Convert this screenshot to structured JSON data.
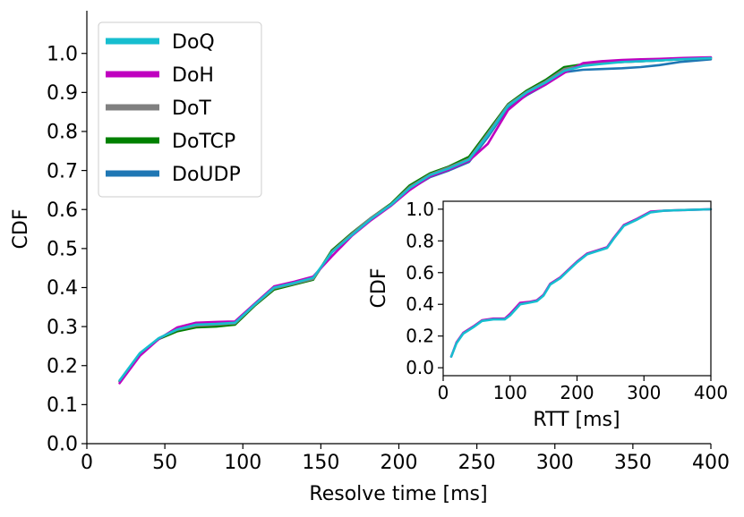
{
  "chart_data": [
    {
      "type": "line",
      "title": "",
      "xlabel": "Resolve time [ms]",
      "ylabel": "CDF",
      "xlim": [
        0,
        400
      ],
      "ylim": [
        0,
        1.05
      ],
      "xticks": [
        0,
        50,
        100,
        150,
        200,
        250,
        300,
        350,
        400
      ],
      "xtick_labels": [
        "0",
        "50",
        "100",
        "150",
        "200",
        "250",
        "300",
        "350",
        "400"
      ],
      "yticks": [
        0.0,
        0.1,
        0.2,
        0.3,
        0.4,
        0.5,
        0.6,
        0.7,
        0.8,
        0.9,
        1.0
      ],
      "ytick_labels": [
        "0.0",
        "0.1",
        "0.2",
        "0.3",
        "0.4",
        "0.5",
        "0.6",
        "0.7",
        "0.8",
        "0.9",
        "1.0"
      ],
      "grid": false,
      "legend_position": "top-left",
      "series": [
        {
          "name": "DoQ",
          "color": "#17becf",
          "x": [
            21,
            34,
            46,
            58,
            70,
            83,
            95,
            108,
            120,
            133,
            145,
            157,
            170,
            182,
            195,
            207,
            220,
            232,
            245,
            257,
            270,
            282,
            294,
            306,
            318,
            330,
            343,
            355,
            367,
            380,
            400
          ],
          "y": [
            0.162,
            0.232,
            0.27,
            0.293,
            0.305,
            0.307,
            0.31,
            0.358,
            0.4,
            0.412,
            0.425,
            0.49,
            0.535,
            0.575,
            0.612,
            0.655,
            0.688,
            0.705,
            0.728,
            0.79,
            0.865,
            0.9,
            0.925,
            0.955,
            0.968,
            0.973,
            0.978,
            0.98,
            0.982,
            0.985,
            0.988
          ]
        },
        {
          "name": "DoH",
          "color": "#bf00bf",
          "x": [
            21,
            34,
            46,
            58,
            70,
            83,
            95,
            108,
            120,
            133,
            145,
            157,
            170,
            182,
            195,
            207,
            220,
            232,
            245,
            257,
            270,
            282,
            294,
            306,
            318,
            330,
            343,
            355,
            367,
            380,
            400
          ],
          "y": [
            0.155,
            0.225,
            0.268,
            0.298,
            0.31,
            0.312,
            0.313,
            0.36,
            0.403,
            0.415,
            0.428,
            0.48,
            0.533,
            0.572,
            0.61,
            0.65,
            0.685,
            0.702,
            0.725,
            0.768,
            0.855,
            0.895,
            0.92,
            0.95,
            0.975,
            0.98,
            0.983,
            0.985,
            0.986,
            0.988,
            0.99
          ]
        },
        {
          "name": "DoT",
          "color": "#808080",
          "x": [
            21,
            34,
            46,
            58,
            70,
            83,
            95,
            108,
            120,
            133,
            145,
            157,
            170,
            182,
            195,
            207,
            220,
            232,
            245,
            257,
            270,
            282,
            294,
            306,
            318,
            330,
            343,
            355,
            367,
            380,
            400
          ],
          "y": [
            0.16,
            0.23,
            0.27,
            0.292,
            0.302,
            0.305,
            0.308,
            0.357,
            0.398,
            0.41,
            0.422,
            0.492,
            0.538,
            0.578,
            0.613,
            0.658,
            0.69,
            0.708,
            0.73,
            0.795,
            0.868,
            0.902,
            0.928,
            0.96,
            0.97,
            0.975,
            0.978,
            0.98,
            0.982,
            0.985,
            0.988
          ]
        },
        {
          "name": "DoTCP",
          "color": "#008000",
          "x": [
            21,
            34,
            46,
            58,
            70,
            83,
            95,
            108,
            120,
            133,
            145,
            157,
            170,
            182,
            195,
            207,
            220,
            232,
            245,
            257,
            270,
            282,
            294,
            306,
            318,
            330,
            343,
            355,
            367,
            380,
            400
          ],
          "y": [
            0.16,
            0.23,
            0.268,
            0.288,
            0.298,
            0.3,
            0.305,
            0.355,
            0.395,
            0.408,
            0.42,
            0.495,
            0.54,
            0.578,
            0.615,
            0.662,
            0.693,
            0.71,
            0.735,
            0.8,
            0.87,
            0.905,
            0.932,
            0.965,
            0.972,
            0.976,
            0.978,
            0.98,
            0.982,
            0.985,
            0.988
          ]
        },
        {
          "name": "DoUDP",
          "color": "#1f77b4",
          "x": [
            21,
            34,
            46,
            58,
            70,
            83,
            95,
            108,
            120,
            133,
            145,
            157,
            170,
            182,
            195,
            207,
            220,
            232,
            245,
            257,
            270,
            282,
            294,
            306,
            318,
            330,
            343,
            355,
            367,
            380,
            400
          ],
          "y": [
            0.16,
            0.23,
            0.268,
            0.29,
            0.3,
            0.303,
            0.306,
            0.356,
            0.398,
            0.41,
            0.422,
            0.49,
            0.535,
            0.575,
            0.61,
            0.652,
            0.683,
            0.7,
            0.722,
            0.785,
            0.862,
            0.893,
            0.92,
            0.952,
            0.958,
            0.96,
            0.962,
            0.965,
            0.97,
            0.978,
            0.985
          ]
        }
      ]
    },
    {
      "type": "line",
      "title": "",
      "xlabel": "RTT [ms]",
      "ylabel": "CDF",
      "xlim": [
        0,
        400
      ],
      "ylim": [
        -0.05,
        1.05
      ],
      "xticks": [
        0,
        100,
        200,
        300,
        400
      ],
      "xtick_labels": [
        "0",
        "100",
        "200",
        "300",
        "400"
      ],
      "yticks": [
        0.0,
        0.2,
        0.4,
        0.6,
        0.8,
        1.0
      ],
      "ytick_labels": [
        "0.0",
        "0.2",
        "0.4",
        "0.6",
        "0.8",
        "1.0"
      ],
      "grid": false,
      "legend_position": "none",
      "series": [
        {
          "name": "DoH",
          "color": "#bf00bf",
          "x": [
            12,
            20,
            30,
            45,
            58,
            75,
            92,
            100,
            115,
            128,
            140,
            150,
            160,
            175,
            190,
            200,
            215,
            230,
            245,
            255,
            270,
            290,
            310,
            330,
            360,
            400
          ],
          "y": [
            0.07,
            0.16,
            0.22,
            0.26,
            0.3,
            0.31,
            0.31,
            0.34,
            0.41,
            0.415,
            0.425,
            0.46,
            0.53,
            0.57,
            0.63,
            0.67,
            0.72,
            0.74,
            0.76,
            0.82,
            0.9,
            0.94,
            0.985,
            0.99,
            0.995,
            1.0
          ]
        },
        {
          "name": "DoQ",
          "color": "#17becf",
          "x": [
            12,
            20,
            30,
            45,
            58,
            75,
            92,
            100,
            115,
            128,
            140,
            150,
            160,
            175,
            190,
            200,
            215,
            230,
            245,
            255,
            270,
            290,
            310,
            330,
            360,
            400
          ],
          "y": [
            0.07,
            0.155,
            0.215,
            0.255,
            0.295,
            0.305,
            0.305,
            0.33,
            0.4,
            0.41,
            0.42,
            0.455,
            0.525,
            0.565,
            0.625,
            0.665,
            0.715,
            0.735,
            0.755,
            0.815,
            0.895,
            0.935,
            0.98,
            0.99,
            0.995,
            1.0
          ]
        }
      ]
    }
  ]
}
